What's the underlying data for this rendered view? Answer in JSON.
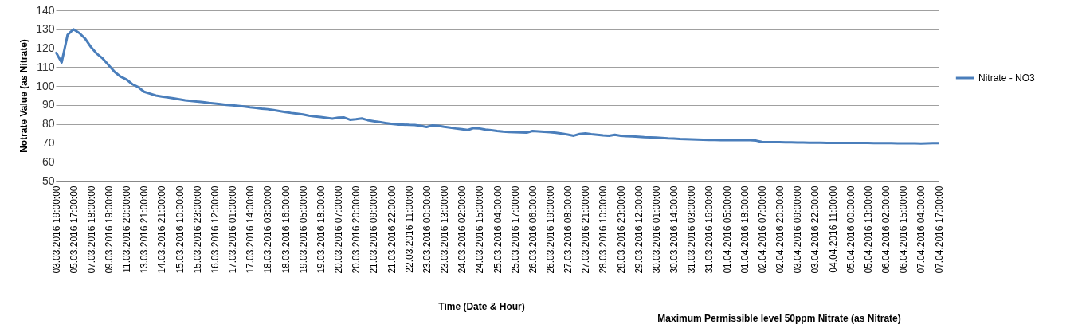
{
  "chart_data": {
    "type": "line",
    "xlabel": "Time (Date & Hour)",
    "ylabel": "Notrate Value (as Nitrate)",
    "annotations": [
      "Maximum Permissible level 50ppm  Nitrate (as Nitrate)"
    ],
    "categories": [
      "03.03.2016 19:00:00",
      null,
      null,
      "05.03.2016 17:00:00",
      null,
      null,
      "07.03.2016 18:00:00",
      null,
      null,
      "09.03.2016 19:00:00",
      null,
      null,
      "11.03.2016 20:00:00",
      null,
      null,
      "13.03.2016 21:00:00",
      null,
      null,
      "14.03.2016 21:00:00",
      null,
      null,
      "15.03.2016 10:00:00",
      null,
      null,
      "15.03.2016 23:00:00",
      null,
      null,
      "16.03.2016 12:00:00",
      null,
      null,
      "17.03.2016 01:00:00",
      null,
      null,
      "17.03.2016 14:00:00",
      null,
      null,
      "18.03.2016 03:00:00",
      null,
      null,
      "18.03.2016 16:00:00",
      null,
      null,
      "19.03.2016 05:00:00",
      null,
      null,
      "19.03.2016 18:00:00",
      null,
      null,
      "20.03.2016 07:00:00",
      null,
      null,
      "20.03.2016 20:00:00",
      null,
      null,
      "21.03.2016 09:00:00",
      null,
      null,
      "21.03.2016 22:00:00",
      null,
      null,
      "22.03.2016 11:00:00",
      null,
      null,
      "23.03.2016 00:00:00",
      null,
      null,
      "23.03.2016 13:00:00",
      null,
      null,
      "24.03.2016 02:00:00",
      null,
      null,
      "24.03.2016 15:00:00",
      null,
      null,
      "25.03.2016 04:00:00",
      null,
      null,
      "25.03.2016 17:00:00",
      null,
      null,
      "26.03.2016 06:00:00",
      null,
      null,
      "26.03.2016 19:00:00",
      null,
      null,
      "27.03.2016 08:00:00",
      null,
      null,
      "27.03.2016 21:00:00",
      null,
      null,
      "28.03.2016 10:00:00",
      null,
      null,
      "28.03.2016 23:00:00",
      null,
      null,
      "29.03.2016 12:00:00",
      null,
      null,
      "30.03.2016 01:00:00",
      null,
      null,
      "30.03.2016 14:00:00",
      null,
      null,
      "31.03.2016 03:00:00",
      null,
      null,
      "31.03.2016 16:00:00",
      null,
      null,
      "01.04.2016 05:00:00",
      null,
      null,
      "01.04.2016 18:00:00",
      null,
      null,
      "02.04.2016 07:00:00",
      null,
      null,
      "02.04.2016 20:00:00",
      null,
      null,
      "03.04.2016 09:00:00",
      null,
      null,
      "03.04.2016 22:00:00",
      null,
      null,
      "04.04.2016 11:00:00",
      null,
      null,
      "05.04.2016 00:00:00",
      null,
      null,
      "05.04.2016 13:00:00",
      null,
      null,
      "06.04.2016 02:00:00",
      null,
      null,
      "06.04.2016 15:00:00",
      null,
      null,
      "07.04.2016 04:00:00",
      null,
      null,
      "07.04.2016 17:00:00"
    ],
    "series": [
      {
        "name": "Nitrate - NO3",
        "color": "#4a7ebb",
        "values": [
          118,
          112.5,
          127,
          130,
          128,
          125,
          120.5,
          117,
          114.5,
          111,
          107.5,
          105,
          103.5,
          101,
          99.5,
          97,
          96,
          95,
          94.5,
          94,
          93.5,
          93,
          92.5,
          92.2,
          91.8,
          91.5,
          91.1,
          90.8,
          90.5,
          90.1,
          89.8,
          89.5,
          89.2,
          88.8,
          88.5,
          88.1,
          87.8,
          87.3,
          86.8,
          86.3,
          85.8,
          85.4,
          85,
          84.4,
          84,
          83.6,
          83.2,
          82.8,
          83.3,
          83.4,
          82.2,
          82.5,
          82.9,
          82,
          81.4,
          81,
          80.5,
          80.1,
          79.7,
          79.7,
          79.5,
          79.4,
          79,
          78.4,
          79.2,
          79,
          78.5,
          78.1,
          77.6,
          77.2,
          76.8,
          77.8,
          77.6,
          77,
          76.7,
          76.3,
          76,
          75.8,
          75.7,
          75.6,
          75.4,
          76.3,
          76.1,
          75.9,
          75.7,
          75.3,
          74.9,
          74.4,
          73.8,
          74.7,
          75,
          74.6,
          74.3,
          74,
          73.8,
          74.3,
          73.8,
          73.6,
          73.4,
          73.2,
          73,
          72.9,
          72.8,
          72.6,
          72.4,
          72.3,
          72.1,
          72,
          71.9,
          71.8,
          71.7,
          71.6,
          71.6,
          71.5,
          71.5,
          71.4,
          71.4,
          71.4,
          71.4,
          71.2,
          70.5,
          70.4,
          70.4,
          70.4,
          70.3,
          70.3,
          70.2,
          70.2,
          70.1,
          70.1,
          70.1,
          70,
          70,
          70,
          70,
          70,
          70,
          70,
          70,
          69.9,
          69.9,
          69.9,
          69.9,
          69.8,
          69.8,
          69.8,
          69.8,
          69.7,
          69.8,
          69.9,
          69.9
        ]
      }
    ],
    "ylim": [
      50,
      140
    ],
    "yticks": [
      50,
      60,
      70,
      80,
      90,
      100,
      110,
      120,
      130,
      140
    ],
    "grid": "y",
    "legend": "right",
    "line_style": "solid",
    "marker": "none"
  }
}
